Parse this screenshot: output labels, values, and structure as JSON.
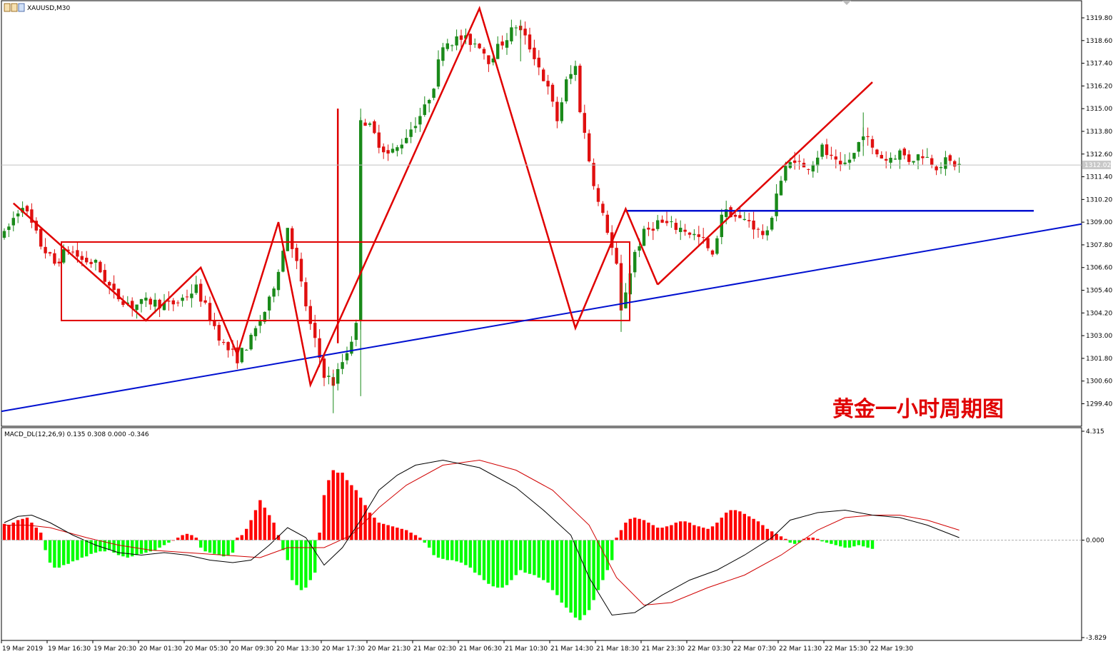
{
  "window": {
    "symbol_label": "XAUUSD,M30"
  },
  "overlay_title": "黄金一小时周期图",
  "price_axis": {
    "ticks": [
      "1319.80",
      "1318.60",
      "1317.40",
      "1316.20",
      "1315.00",
      "1313.80",
      "1312.60",
      "1311.40",
      "1310.20",
      "1309.00",
      "1307.80",
      "1306.60",
      "1305.40",
      "1304.20",
      "1303.00",
      "1301.80",
      "1300.60",
      "1299.40"
    ],
    "current_price": "1312.02"
  },
  "macd": {
    "label": "MACD_DL(12,26,9) 0.135 0.308 0.000 -0.346",
    "ticks": [
      "4.315",
      "0.000",
      "-3.829"
    ]
  },
  "time_axis": {
    "labels": [
      "19 Mar 2019",
      "19 Mar 16:30",
      "19 Mar 20:30",
      "20 Mar 01:30",
      "20 Mar 05:30",
      "20 Mar 09:30",
      "20 Mar 13:30",
      "20 Mar 17:30",
      "20 Mar 21:30",
      "21 Mar 02:30",
      "21 Mar 06:30",
      "21 Mar 10:30",
      "21 Mar 14:30",
      "21 Mar 18:30",
      "21 Mar 23:30",
      "22 Mar 03:30",
      "22 Mar 07:30",
      "22 Mar 11:30",
      "22 Mar 15:30",
      "22 Mar 19:30"
    ]
  },
  "colors": {
    "bull": "#1a8a1a",
    "bear": "#e01010",
    "annotation_red": "#e00000",
    "trend_blue": "#0010d0",
    "macd_pos": "#ff0000",
    "macd_neg": "#00ff00",
    "signal_line": "#d00000",
    "macd_line": "#000000"
  },
  "chart_data": [
    {
      "type": "candlestick",
      "title": "XAUUSD,M30",
      "ylim": [
        1298.7,
        1320.4
      ],
      "x_labels": [
        "19 Mar 2019",
        "19 Mar 16:30",
        "19 Mar 20:30",
        "20 Mar 01:30",
        "20 Mar 05:30",
        "20 Mar 09:30",
        "20 Mar 13:30",
        "20 Mar 17:30",
        "20 Mar 21:30",
        "21 Mar 02:30",
        "21 Mar 06:30",
        "21 Mar 10:30",
        "21 Mar 14:30",
        "21 Mar 18:30",
        "21 Mar 23:30",
        "22 Mar 03:30",
        "22 Mar 07:30",
        "22 Mar 11:30",
        "22 Mar 15:30",
        "22 Mar 19:30"
      ],
      "price_path": [
        [
          0,
          1308.3
        ],
        [
          2,
          1309.2
        ],
        [
          4,
          1310.0
        ],
        [
          5,
          1309.4
        ],
        [
          8,
          1307.8
        ],
        [
          11,
          1306.8
        ],
        [
          14,
          1307.6
        ],
        [
          17,
          1307.0
        ],
        [
          20,
          1306.8
        ],
        [
          24,
          1305.2
        ],
        [
          28,
          1304.6
        ],
        [
          32,
          1304.8
        ],
        [
          36,
          1304.6
        ],
        [
          38,
          1304.8
        ],
        [
          42,
          1305.5
        ],
        [
          45,
          1304.0
        ],
        [
          48,
          1302.5
        ],
        [
          51,
          1301.8
        ],
        [
          54,
          1302.8
        ],
        [
          58,
          1304.8
        ],
        [
          61,
          1307.5
        ],
        [
          62,
          1308.8
        ],
        [
          64,
          1306.8
        ],
        [
          67,
          1303.5
        ],
        [
          70,
          1301.0
        ],
        [
          72,
          1300.5
        ],
        [
          75,
          1302.2
        ],
        [
          77,
          1303.5
        ],
        [
          78,
          1314.6
        ],
        [
          80,
          1314.0
        ],
        [
          82,
          1313.2
        ],
        [
          84,
          1312.6
        ],
        [
          86,
          1312.9
        ],
        [
          88,
          1313.6
        ],
        [
          90,
          1314.3
        ],
        [
          92,
          1315.0
        ],
        [
          94,
          1316.3
        ],
        [
          96,
          1318.5
        ],
        [
          100,
          1318.7
        ],
        [
          104,
          1318.4
        ],
        [
          106,
          1317.6
        ],
        [
          110,
          1318.8
        ],
        [
          112,
          1319.4
        ],
        [
          114,
          1318.7
        ],
        [
          116,
          1317.8
        ],
        [
          119,
          1316.0
        ],
        [
          121,
          1314.4
        ],
        [
          123,
          1316.4
        ],
        [
          125,
          1317.2
        ],
        [
          126,
          1315.0
        ],
        [
          128,
          1312.3
        ],
        [
          130,
          1310.0
        ],
        [
          132,
          1308.6
        ],
        [
          134,
          1306.6
        ],
        [
          135,
          1304.2
        ],
        [
          136,
          1305.4
        ],
        [
          138,
          1307.4
        ],
        [
          140,
          1308.4
        ],
        [
          143,
          1309.0
        ],
        [
          146,
          1308.8
        ],
        [
          149,
          1308.6
        ],
        [
          151,
          1308.3
        ],
        [
          153,
          1308.0
        ],
        [
          155,
          1307.1
        ],
        [
          157,
          1309.5
        ],
        [
          159,
          1309.5
        ],
        [
          161,
          1309.1
        ],
        [
          163,
          1309.1
        ],
        [
          165,
          1308.5
        ],
        [
          167,
          1308.3
        ],
        [
          169,
          1310.6
        ],
        [
          171,
          1311.8
        ],
        [
          173,
          1312.4
        ],
        [
          175,
          1311.8
        ],
        [
          177,
          1312.2
        ],
        [
          179,
          1312.9
        ],
        [
          181,
          1312.3
        ],
        [
          183,
          1311.8
        ],
        [
          186,
          1312.6
        ],
        [
          188,
          1313.8
        ],
        [
          190,
          1312.8
        ],
        [
          193,
          1312.3
        ],
        [
          196,
          1312.7
        ],
        [
          198,
          1312.3
        ],
        [
          201,
          1312.6
        ],
        [
          204,
          1312.0
        ],
        [
          206,
          1312.2
        ],
        [
          209,
          1312.0
        ]
      ],
      "annotations": [
        {
          "type": "rectangle",
          "label": "consolidation box",
          "from_time": "19 Mar 16:30",
          "price_top": 1307.95,
          "price_bottom": 1303.8
        },
        {
          "type": "rising trendline",
          "color": "blue",
          "start_price": 1299.0,
          "end_price": 1308.9
        },
        {
          "type": "horizontal line",
          "color": "blue",
          "price": 1309.6
        },
        {
          "type": "rising channel line",
          "color": "red"
        }
      ]
    },
    {
      "type": "bar",
      "title": "MACD_DL(12,26,9) 0.135 0.308 0.000 -0.346",
      "ylim": [
        -3.829,
        4.315
      ],
      "series": [
        {
          "name": "MACD",
          "style": "histogram"
        },
        {
          "name": "MACD_DL",
          "style": "line"
        },
        {
          "name": "Signal",
          "style": "line"
        }
      ],
      "histogram": [
        0.65,
        0.6,
        0.7,
        0.8,
        0.85,
        0.9,
        0.7,
        0.5,
        0.3,
        -0.4,
        -0.9,
        -1.1,
        -1.1,
        -1.0,
        -0.95,
        -0.85,
        -0.8,
        -0.7,
        -0.65,
        -0.55,
        -0.5,
        -0.45,
        -0.45,
        -0.4,
        -0.5,
        -0.6,
        -0.65,
        -0.7,
        -0.65,
        -0.6,
        -0.55,
        -0.5,
        -0.45,
        -0.4,
        -0.3,
        -0.2,
        -0.1,
        0.0,
        0.1,
        0.2,
        0.25,
        0.2,
        0.1,
        -0.3,
        -0.45,
        -0.5,
        -0.55,
        -0.6,
        -0.65,
        -0.6,
        -0.5,
        0.1,
        0.2,
        0.45,
        0.8,
        1.2,
        1.6,
        1.3,
        1.0,
        0.7,
        0.2,
        -0.4,
        -0.8,
        -1.6,
        -1.8,
        -2.0,
        -1.9,
        -1.6,
        -1.3,
        0.3,
        1.8,
        2.4,
        2.8,
        2.7,
        2.7,
        2.4,
        2.2,
        2.0,
        1.7,
        1.4,
        1.1,
        0.9,
        0.7,
        0.65,
        0.6,
        0.55,
        0.5,
        0.45,
        0.4,
        0.3,
        0.2,
        0.1,
        -0.1,
        -0.3,
        -0.6,
        -0.7,
        -0.75,
        -0.8,
        -0.8,
        -0.85,
        -0.9,
        -1.0,
        -1.1,
        -1.3,
        -1.4,
        -1.6,
        -1.75,
        -1.85,
        -1.9,
        -1.9,
        -1.8,
        -1.6,
        -1.4,
        -1.2,
        -1.3,
        -1.35,
        -1.4,
        -1.5,
        -1.6,
        -1.7,
        -2.0,
        -2.2,
        -2.5,
        -2.7,
        -2.9,
        -3.1,
        -3.2,
        -3.0,
        -2.8,
        -2.4,
        -2.0,
        -1.6,
        -1.2,
        -0.8,
        0.1,
        0.4,
        0.7,
        0.85,
        0.9,
        0.85,
        0.8,
        0.7,
        0.6,
        0.5,
        0.5,
        0.55,
        0.6,
        0.7,
        0.75,
        0.75,
        0.7,
        0.6,
        0.55,
        0.5,
        0.45,
        0.55,
        0.7,
        0.9,
        1.1,
        1.2,
        1.2,
        1.15,
        1.05,
        0.95,
        0.85,
        0.75,
        0.6,
        0.45,
        0.35,
        0.25,
        0.15,
        0.05,
        -0.1,
        -0.15,
        -0.1,
        0.05,
        0.1,
        0.1,
        0.05,
        -0.05,
        -0.1,
        -0.15,
        -0.2,
        -0.25,
        -0.3,
        -0.3,
        -0.25,
        -0.2,
        -0.25,
        -0.3,
        -0.35
      ],
      "macd_line_path": [
        [
          0,
          0.7
        ],
        [
          3,
          0.95
        ],
        [
          6,
          1.0
        ],
        [
          10,
          0.7
        ],
        [
          15,
          0.2
        ],
        [
          20,
          -0.2
        ],
        [
          25,
          -0.5
        ],
        [
          30,
          -0.6
        ],
        [
          35,
          -0.5
        ],
        [
          40,
          -0.6
        ],
        [
          45,
          -0.8
        ],
        [
          50,
          -0.9
        ],
        [
          54,
          -0.8
        ],
        [
          58,
          -0.2
        ],
        [
          62,
          0.5
        ],
        [
          66,
          0.1
        ],
        [
          70,
          -1.0
        ],
        [
          74,
          -0.3
        ],
        [
          78,
          0.8
        ],
        [
          82,
          2.0
        ],
        [
          86,
          2.6
        ],
        [
          90,
          3.0
        ],
        [
          96,
          3.2
        ],
        [
          104,
          2.9
        ],
        [
          112,
          2.1
        ],
        [
          118,
          1.2
        ],
        [
          124,
          0.2
        ],
        [
          128,
          -1.5
        ],
        [
          133,
          -3.0
        ],
        [
          138,
          -2.9
        ],
        [
          144,
          -2.2
        ],
        [
          150,
          -1.6
        ],
        [
          156,
          -1.2
        ],
        [
          162,
          -0.6
        ],
        [
          168,
          0.1
        ],
        [
          172,
          0.8
        ],
        [
          178,
          1.1
        ],
        [
          184,
          1.2
        ],
        [
          190,
          1.0
        ],
        [
          196,
          0.9
        ],
        [
          202,
          0.6
        ],
        [
          209,
          0.1
        ]
      ],
      "signal_line_path": [
        [
          0,
          0.6
        ],
        [
          5,
          0.6
        ],
        [
          10,
          0.5
        ],
        [
          18,
          0.1
        ],
        [
          25,
          -0.2
        ],
        [
          32,
          -0.4
        ],
        [
          40,
          -0.5
        ],
        [
          48,
          -0.6
        ],
        [
          56,
          -0.7
        ],
        [
          62,
          -0.3
        ],
        [
          70,
          -0.3
        ],
        [
          76,
          0.2
        ],
        [
          82,
          1.3
        ],
        [
          88,
          2.2
        ],
        [
          96,
          3.0
        ],
        [
          104,
          3.2
        ],
        [
          112,
          2.8
        ],
        [
          120,
          2.0
        ],
        [
          128,
          0.6
        ],
        [
          134,
          -1.5
        ],
        [
          140,
          -2.6
        ],
        [
          146,
          -2.5
        ],
        [
          154,
          -1.9
        ],
        [
          162,
          -1.4
        ],
        [
          170,
          -0.6
        ],
        [
          178,
          0.4
        ],
        [
          184,
          0.9
        ],
        [
          190,
          1.0
        ],
        [
          196,
          1.0
        ],
        [
          202,
          0.8
        ],
        [
          209,
          0.4
        ]
      ]
    }
  ]
}
